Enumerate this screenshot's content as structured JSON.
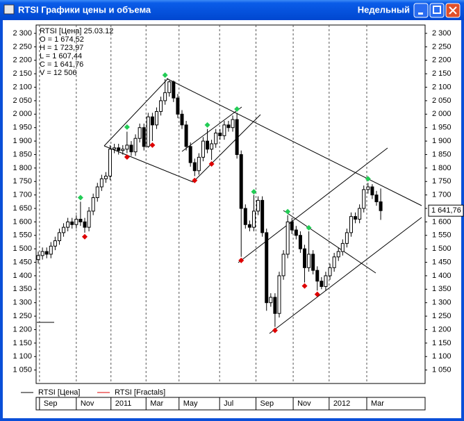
{
  "window": {
    "title": "RTSI Графики цены и объема",
    "mode": "Недельный"
  },
  "chart_data": {
    "type": "candlestick",
    "info": [
      "RTSI [Цена] 25.03.12",
      "O = 1 674,52",
      "H = 1 723,97",
      "L = 1 607,44",
      "C = 1 641,76",
      "V = 12 506"
    ],
    "last_value_label": "1 641,76",
    "xlim": [
      -0.5,
      91.5
    ],
    "ylim": [
      1000,
      2331
    ],
    "xgrid": true,
    "xticks": [
      {
        "value": 0.3,
        "label": "Sep"
      },
      {
        "value": 9.0,
        "label": "Nov"
      },
      {
        "value": 17.2,
        "label": "2011"
      },
      {
        "value": 25.5,
        "label": "Mar"
      },
      {
        "value": 33.3,
        "label": "May"
      },
      {
        "value": 42.9,
        "label": "Jul"
      },
      {
        "value": 51.5,
        "label": "Sep"
      },
      {
        "value": 60.3,
        "label": "Nov"
      },
      {
        "value": 68.8,
        "label": "2012"
      },
      {
        "value": 77.7,
        "label": "Mar"
      }
    ],
    "yticks": [
      {
        "value": 1050,
        "label": "1 050"
      },
      {
        "value": 1100,
        "label": "1 100"
      },
      {
        "value": 1150,
        "label": "1 150"
      },
      {
        "value": 1200,
        "label": "1 200"
      },
      {
        "value": 1250,
        "label": "1 250"
      },
      {
        "value": 1300,
        "label": "1 300"
      },
      {
        "value": 1350,
        "label": "1 350"
      },
      {
        "value": 1400,
        "label": "1 400"
      },
      {
        "value": 1450,
        "label": "1 450"
      },
      {
        "value": 1500,
        "label": "1 500"
      },
      {
        "value": 1550,
        "label": "1 550"
      },
      {
        "value": 1600,
        "label": "1 600"
      },
      {
        "value": 1650,
        "label": "1 650"
      },
      {
        "value": 1700,
        "label": "1 700"
      },
      {
        "value": 1750,
        "label": "1 750"
      },
      {
        "value": 1800,
        "label": "1 800"
      },
      {
        "value": 1850,
        "label": "1 850"
      },
      {
        "value": 1900,
        "label": "1 900"
      },
      {
        "value": 1950,
        "label": "1 950"
      },
      {
        "value": 2000,
        "label": "2 000"
      },
      {
        "value": 2050,
        "label": "2 050"
      },
      {
        "value": 2100,
        "label": "2 100"
      },
      {
        "value": 2150,
        "label": "2 150"
      },
      {
        "value": 2200,
        "label": "2 200"
      },
      {
        "value": 2250,
        "label": "2 250"
      },
      {
        "value": 2300,
        "label": "2 300"
      }
    ],
    "series": [
      {
        "name": "RTSI [Цена]",
        "color": "#000000",
        "up_fill": "#ffffff",
        "down_fill": "#000000",
        "open": [
          1460,
          1475,
          1490,
          1480,
          1510,
          1530,
          1560,
          1580,
          1600,
          1590,
          1610,
          1600,
          1580,
          1640,
          1690,
          1730,
          1760,
          1770,
          1870,
          1875,
          1865,
          1870,
          1885,
          1860,
          1910,
          1950,
          1880,
          1990,
          1960,
          2010,
          2050,
          2080,
          2120,
          2060,
          2000,
          1960,
          1880,
          1820,
          1790,
          1840,
          1900,
          1870,
          1890,
          1930,
          1920,
          1960,
          1950,
          1980,
          1850,
          1650,
          1590,
          1580,
          1640,
          1680,
          1560,
          1300,
          1320,
          1260,
          1400,
          1480,
          1600,
          1570,
          1550,
          1500,
          1430,
          1480,
          1420,
          1380,
          1360,
          1400,
          1430,
          1470,
          1490,
          1520,
          1560,
          1620,
          1610,
          1650,
          1720,
          1730,
          1700,
          1674.52
        ],
        "high": [
          1490,
          1505,
          1505,
          1525,
          1545,
          1575,
          1595,
          1615,
          1615,
          1625,
          1675,
          1615,
          1655,
          1705,
          1745,
          1775,
          1785,
          1885,
          1890,
          1890,
          1885,
          1935,
          1900,
          1925,
          1965,
          1965,
          2005,
          2005,
          2025,
          2065,
          2130,
          2125,
          2125,
          2075,
          2015,
          1975,
          1895,
          1835,
          1855,
          1915,
          1945,
          1905,
          1945,
          1945,
          1975,
          1975,
          1995,
          2005,
          1865,
          1665,
          1605,
          1700,
          1695,
          1695,
          1575,
          1335,
          1335,
          1415,
          1495,
          1625,
          1615,
          1585,
          1565,
          1515,
          1565,
          1495,
          1435,
          1395,
          1415,
          1445,
          1485,
          1505,
          1535,
          1575,
          1635,
          1635,
          1665,
          1735,
          1745,
          1740,
          1715,
          1723.97
        ],
        "low": [
          1445,
          1460,
          1465,
          1465,
          1495,
          1515,
          1545,
          1565,
          1575,
          1575,
          1585,
          1560,
          1565,
          1625,
          1675,
          1715,
          1745,
          1755,
          1855,
          1850,
          1850,
          1855,
          1845,
          1845,
          1895,
          1865,
          1875,
          1900,
          1945,
          1995,
          2035,
          2065,
          2045,
          1985,
          1945,
          1865,
          1805,
          1770,
          1775,
          1825,
          1855,
          1830,
          1875,
          1905,
          1905,
          1935,
          1935,
          1835,
          1470,
          1575,
          1565,
          1565,
          1625,
          1545,
          1270,
          1285,
          1210,
          1245,
          1385,
          1465,
          1555,
          1535,
          1485,
          1375,
          1415,
          1405,
          1345,
          1350,
          1345,
          1385,
          1415,
          1455,
          1475,
          1505,
          1545,
          1595,
          1595,
          1635,
          1705,
          1685,
          1660,
          1607.44
        ],
        "close": [
          1475,
          1490,
          1480,
          1510,
          1530,
          1560,
          1580,
          1600,
          1590,
          1610,
          1600,
          1580,
          1640,
          1690,
          1730,
          1760,
          1770,
          1870,
          1875,
          1865,
          1870,
          1885,
          1860,
          1910,
          1950,
          1880,
          1990,
          1960,
          2010,
          2050,
          2080,
          2120,
          2060,
          2000,
          1960,
          1880,
          1820,
          1790,
          1840,
          1900,
          1870,
          1890,
          1930,
          1920,
          1960,
          1950,
          1980,
          1850,
          1650,
          1590,
          1580,
          1640,
          1680,
          1560,
          1300,
          1320,
          1260,
          1400,
          1480,
          1600,
          1570,
          1550,
          1500,
          1430,
          1480,
          1420,
          1380,
          1360,
          1400,
          1430,
          1470,
          1490,
          1520,
          1560,
          1620,
          1610,
          1650,
          1720,
          1730,
          1700,
          1674.52,
          1641.76
        ]
      },
      {
        "name": "RTSI [Fractals]",
        "color": "#e00000",
        "up_color": "#22cc55",
        "down_color": "#dd0000",
        "up": {
          "x": [
            10,
            21,
            30,
            40,
            47,
            51,
            59,
            64,
            78
          ],
          "values": [
            1690,
            1952,
            2145,
            1960,
            2019,
            1712,
            1638,
            1578,
            1760
          ]
        },
        "down": {
          "x": [
            11,
            21,
            27,
            37,
            41,
            48,
            56,
            63,
            66
          ],
          "values": [
            1545,
            1841,
            1885,
            1754,
            1815,
            1457,
            1197,
            1362,
            1331
          ]
        }
      }
    ]
  }
}
